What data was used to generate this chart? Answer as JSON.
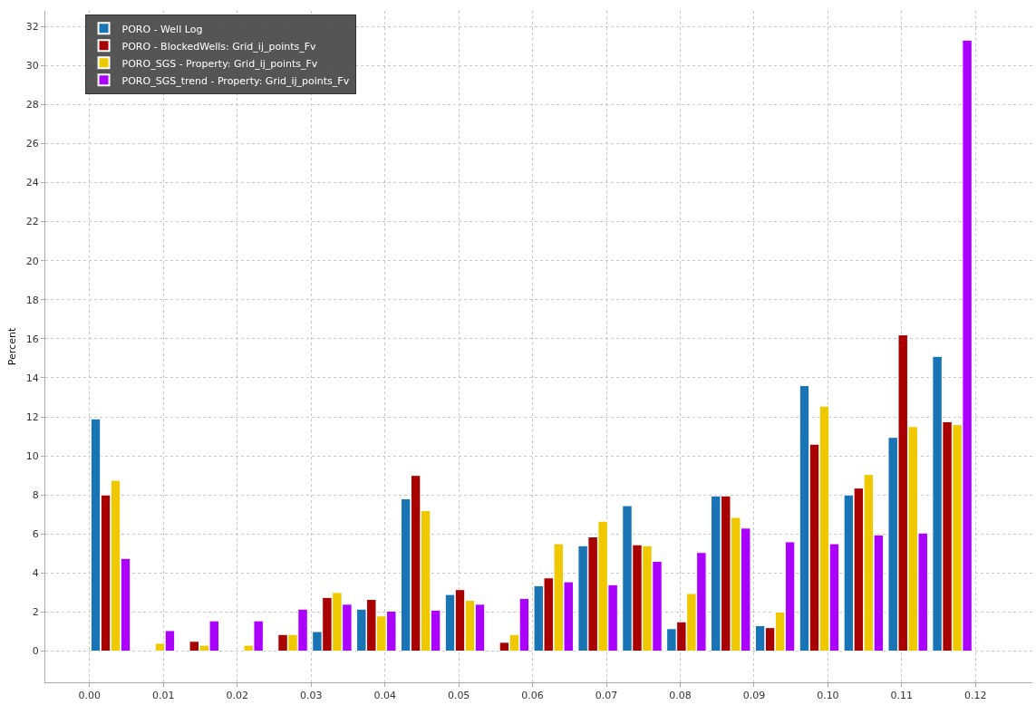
{
  "chart_data": {
    "type": "histogram",
    "ylabel": "Percent",
    "bins": [
      0,
      0.006,
      0.012,
      0.018,
      0.024,
      0.03,
      0.036,
      0.042,
      0.048,
      0.054,
      0.06,
      0.066,
      0.072,
      0.078,
      0.084,
      0.09,
      0.096,
      0.102,
      0.108,
      0.114,
      0.12
    ],
    "series": [
      {
        "name": "PORO - Well Log",
        "color": "#1874b4",
        "values": [
          11.9,
          null,
          null,
          null,
          null,
          1.0,
          2.15,
          7.8,
          2.9,
          null,
          3.35,
          5.4,
          7.45,
          1.15,
          7.95,
          1.3,
          13.6,
          8.0,
          10.95,
          15.1
        ]
      },
      {
        "name": "PORO - BlockedWells: Grid_ij_points_Fv",
        "color": "#a80000",
        "values": [
          8.0,
          null,
          0.5,
          null,
          0.85,
          2.75,
          2.65,
          9.0,
          3.15,
          0.45,
          3.75,
          5.85,
          5.45,
          1.5,
          7.95,
          1.2,
          10.6,
          8.35,
          16.2,
          11.75
        ]
      },
      {
        "name": "PORO_SGS - Property: Grid_ij_points_Fv",
        "color": "#f0c800",
        "values": [
          8.75,
          0.4,
          0.3,
          0.3,
          0.85,
          3.0,
          1.8,
          7.2,
          2.6,
          0.85,
          5.5,
          6.65,
          5.4,
          2.95,
          6.85,
          2.0,
          12.55,
          9.05,
          11.5,
          11.6
        ]
      },
      {
        "name": "PORO_SGS_trend - Property: Grid_ij_points_Fv",
        "color": "#aa00ff",
        "values": [
          4.75,
          1.05,
          1.55,
          1.55,
          2.15,
          2.4,
          2.05,
          2.1,
          2.4,
          2.7,
          3.55,
          3.4,
          4.6,
          5.05,
          6.3,
          5.6,
          5.5,
          5.95,
          6.05,
          31.3
        ]
      }
    ],
    "xlim": [
      -0.006,
      0.1277
    ],
    "xticks": [
      {
        "value": 0,
        "label": "0.00"
      },
      {
        "value": 0.01,
        "label": "0.01"
      },
      {
        "value": 0.02,
        "label": "0.02"
      },
      {
        "value": 0.03,
        "label": "0.03"
      },
      {
        "value": 0.04,
        "label": "0.04"
      },
      {
        "value": 0.05,
        "label": "0.05"
      },
      {
        "value": 0.06,
        "label": "0.06"
      },
      {
        "value": 0.07,
        "label": "0.07"
      },
      {
        "value": 0.08,
        "label": "0.08"
      },
      {
        "value": 0.09,
        "label": "0.09"
      },
      {
        "value": 0.1,
        "label": "0.10"
      },
      {
        "value": 0.11,
        "label": "0.11"
      },
      {
        "value": 0.12,
        "label": "0.12"
      }
    ],
    "ylim": [
      -1.6,
      32.8
    ],
    "yticks": [
      0,
      2,
      4,
      6,
      8,
      10,
      12,
      14,
      16,
      18,
      20,
      22,
      24,
      26,
      28,
      30,
      32
    ],
    "grid": true,
    "legend": "top left"
  }
}
